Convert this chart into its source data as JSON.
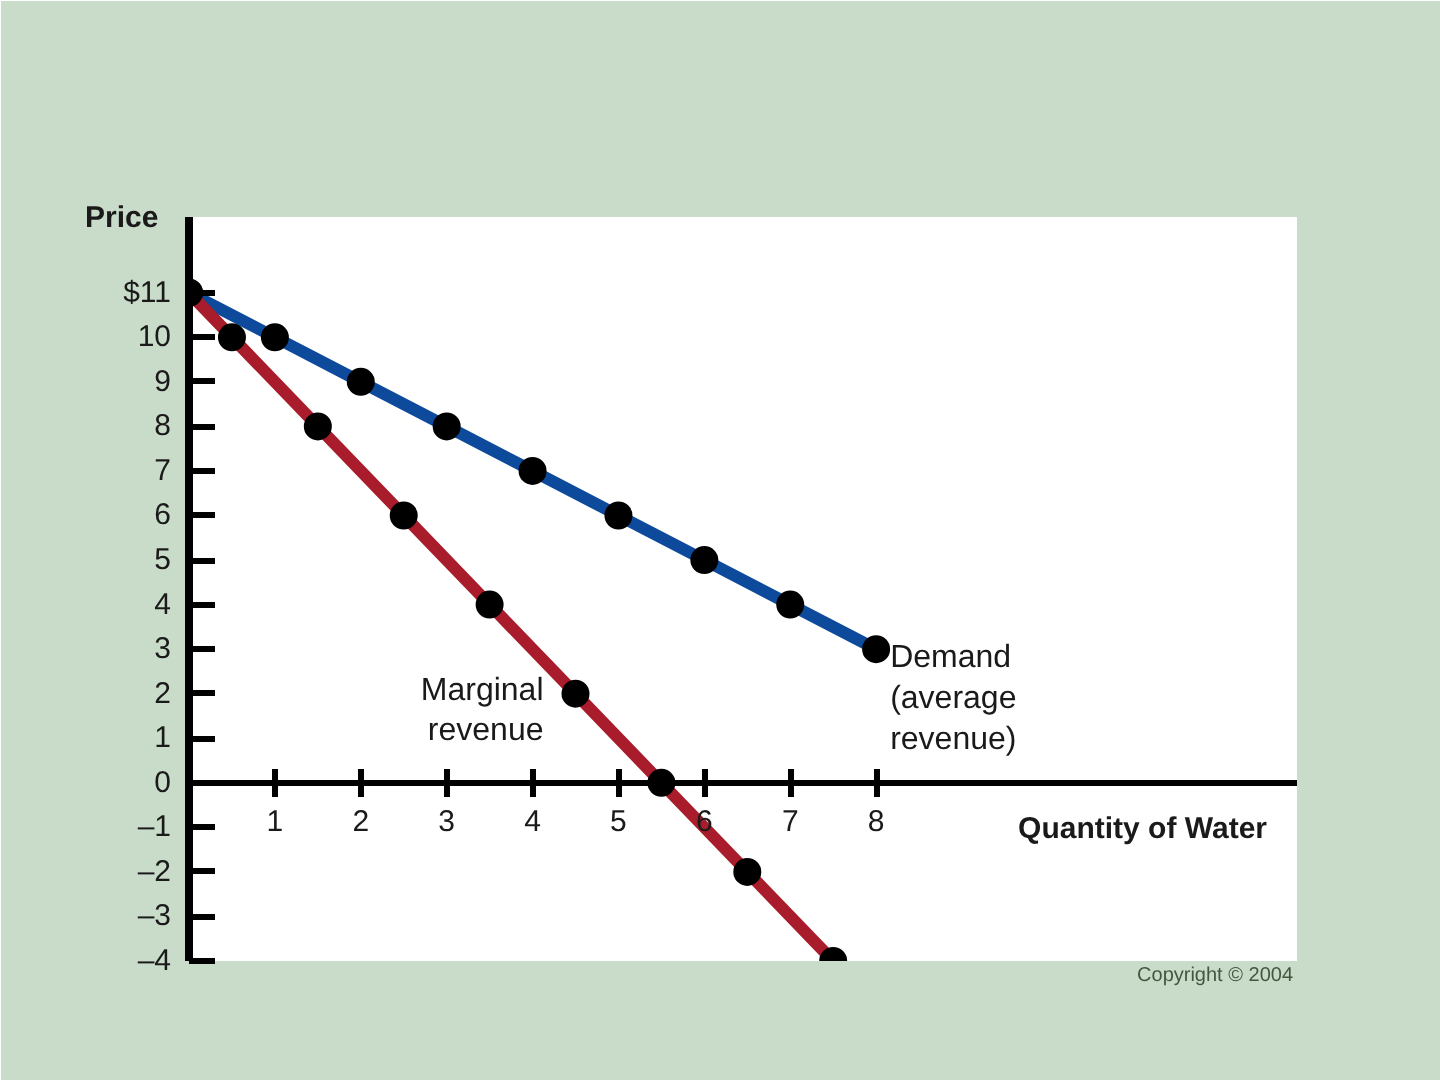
{
  "chart_data": {
    "type": "line",
    "xlabel": "Quantity of Water",
    "ylabel": "Price",
    "xlim": [
      0,
      12.9
    ],
    "ylim": [
      -4,
      12.7
    ],
    "xticks": [
      1,
      2,
      3,
      4,
      5,
      6,
      7,
      8
    ],
    "yticks": [
      {
        "value": 11,
        "label": "$11"
      },
      10,
      9,
      8,
      7,
      6,
      5,
      4,
      3,
      2,
      1,
      0,
      {
        "value": -1,
        "label": "–1"
      },
      {
        "value": -2,
        "label": "–2"
      },
      {
        "value": -3,
        "label": "–3"
      },
      {
        "value": -4,
        "label": "–4"
      }
    ],
    "marker": "circle",
    "series": [
      {
        "color": "#0d4a9b",
        "x": [
          0,
          1,
          2,
          3,
          4,
          5,
          6,
          7,
          8
        ],
        "values": [
          11,
          10,
          9,
          8,
          7,
          6,
          5,
          4,
          3
        ]
      },
      {
        "color": "#a81c2b",
        "x": [
          0,
          0.5,
          1.5,
          2.5,
          3.5,
          4.5,
          5.5,
          6.5,
          7.5
        ],
        "values": [
          11,
          10,
          8,
          6,
          4,
          2,
          0,
          -2,
          -4
        ]
      }
    ],
    "annotations": [
      {
        "text": "Marginal revenue",
        "x": 4.5,
        "y": 2
      },
      {
        "text": "Demand (average revenue)",
        "x": 8,
        "y": 3
      },
      "Copyright © 2004"
    ]
  }
}
